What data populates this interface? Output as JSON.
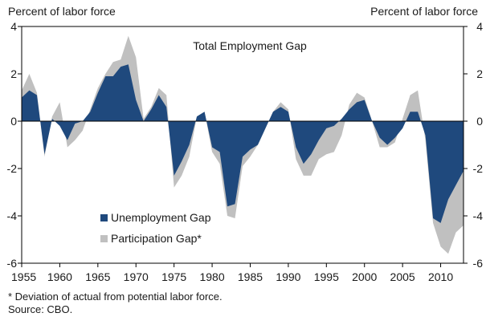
{
  "chart_data": {
    "type": "area",
    "title": "Total Employment Gap",
    "ylabel_left": "Percent of labor force",
    "ylabel_right": "Percent of labor force",
    "xlabel": "",
    "xlim": [
      1955,
      2013
    ],
    "ylim": [
      -6,
      4
    ],
    "yticks": [
      -6,
      -4,
      -2,
      0,
      2,
      4
    ],
    "xticks": [
      1955,
      1960,
      1965,
      1970,
      1975,
      1980,
      1985,
      1990,
      1995,
      2000,
      2005,
      2010
    ],
    "grid": false,
    "legend_position": "lower-left",
    "colors": {
      "unemployment": "#1f497d",
      "participation": "#c0c0c0",
      "axis": "#000000"
    },
    "series": [
      {
        "name": "Unemployment Gap",
        "x": [
          1955,
          1956,
          1957,
          1958,
          1959,
          1960,
          1961,
          1962,
          1963,
          1964,
          1965,
          1966,
          1967,
          1968,
          1969,
          1970,
          1971,
          1972,
          1973,
          1974,
          1975,
          1976,
          1977,
          1978,
          1979,
          1980,
          1981,
          1982,
          1983,
          1984,
          1985,
          1986,
          1987,
          1988,
          1989,
          1990,
          1991,
          1992,
          1993,
          1994,
          1995,
          1996,
          1997,
          1998,
          1999,
          2000,
          2001,
          2002,
          2003,
          2004,
          2005,
          2006,
          2007,
          2008,
          2009,
          2010,
          2011,
          2012,
          2013
        ],
        "values": [
          1.0,
          1.3,
          1.1,
          -1.4,
          0.1,
          -0.2,
          -0.8,
          -0.1,
          0.0,
          0.4,
          1.2,
          1.9,
          1.9,
          2.3,
          2.4,
          0.9,
          0.0,
          0.5,
          1.1,
          0.6,
          -2.3,
          -1.7,
          -1.0,
          0.2,
          0.4,
          -1.1,
          -1.3,
          -3.6,
          -3.5,
          -1.5,
          -1.2,
          -1.0,
          -0.3,
          0.4,
          0.6,
          0.4,
          -1.1,
          -1.8,
          -1.4,
          -0.8,
          -0.3,
          -0.2,
          0.1,
          0.5,
          0.8,
          0.9,
          0.0,
          -0.7,
          -1.0,
          -0.7,
          -0.3,
          0.4,
          0.4,
          -0.6,
          -4.1,
          -4.3,
          -3.3,
          -2.7,
          -2.1
        ]
      },
      {
        "name": "Participation Gap*",
        "x": [
          1955,
          1956,
          1957,
          1958,
          1959,
          1960,
          1961,
          1962,
          1963,
          1964,
          1965,
          1966,
          1967,
          1968,
          1969,
          1970,
          1971,
          1972,
          1973,
          1974,
          1975,
          1976,
          1977,
          1978,
          1979,
          1980,
          1981,
          1982,
          1983,
          1984,
          1985,
          1986,
          1987,
          1988,
          1989,
          1990,
          1991,
          1992,
          1993,
          1994,
          1995,
          1996,
          1997,
          1998,
          1999,
          2000,
          2001,
          2002,
          2003,
          2004,
          2005,
          2006,
          2007,
          2008,
          2009,
          2010,
          2011,
          2012,
          2013
        ],
        "values": [
          0.3,
          0.7,
          0.1,
          -0.1,
          0.1,
          1.0,
          -0.3,
          -0.7,
          -0.4,
          0.1,
          0.2,
          0.1,
          0.6,
          0.3,
          1.2,
          1.8,
          0.1,
          0.1,
          0.3,
          0.5,
          -0.5,
          -0.6,
          -0.5,
          0.0,
          0.0,
          -0.2,
          -0.5,
          -0.4,
          -0.6,
          -0.4,
          -0.3,
          0.0,
          0.0,
          0.0,
          0.2,
          0.1,
          -0.5,
          -0.5,
          -0.9,
          -0.8,
          -1.1,
          -1.1,
          -0.7,
          0.2,
          0.4,
          0.1,
          0.0,
          -0.4,
          -0.1,
          -0.2,
          0.4,
          0.7,
          0.9,
          -0.2,
          -0.2,
          -1.0,
          -2.3,
          -2.0,
          -2.3
        ]
      }
    ],
    "annotation": "* Deviation of actual from potential labor force.",
    "source": "Source: CBO."
  }
}
